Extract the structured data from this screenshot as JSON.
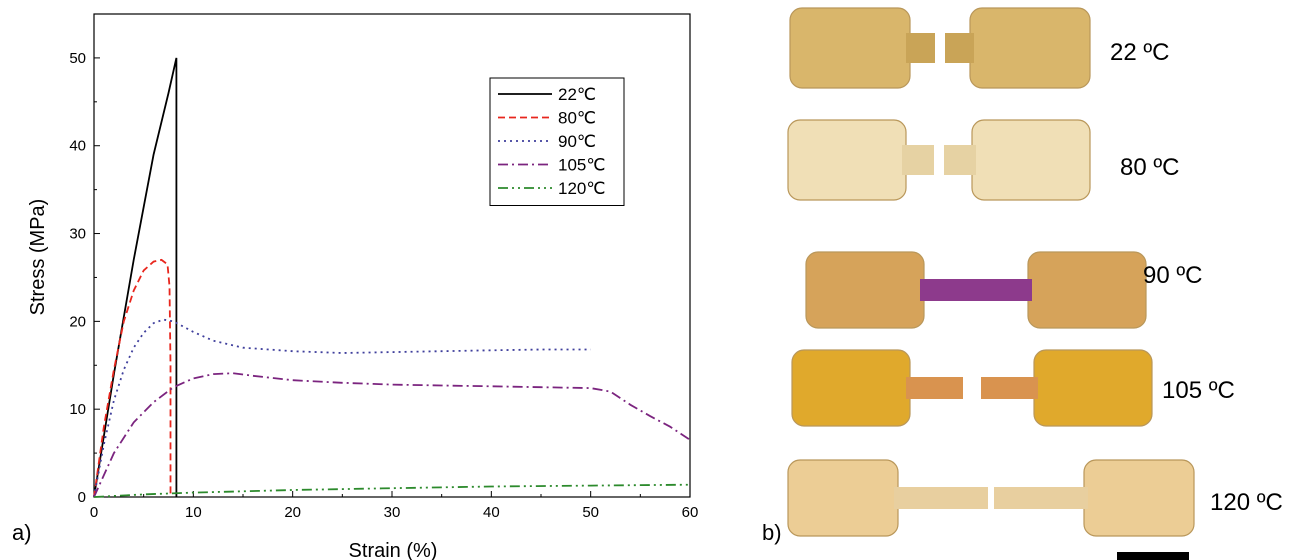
{
  "panels": {
    "a_label": "a)",
    "b_label": "b)"
  },
  "chart_data": {
    "type": "line",
    "xlabel": "Strain (%)",
    "ylabel": "Stress (MPa)",
    "xlim": [
      0,
      60
    ],
    "ylim": [
      0,
      55
    ],
    "xticks": [
      0,
      10,
      20,
      30,
      40,
      50,
      60
    ],
    "yticks": [
      0,
      10,
      20,
      30,
      40,
      50
    ],
    "grid": false,
    "legend_position": "top-right",
    "series": [
      {
        "name": "22℃",
        "color": "#000000",
        "dash": "solid",
        "x": [
          0,
          2,
          4,
          6,
          7.5,
          8.3,
          8.3
        ],
        "y": [
          0,
          14,
          27,
          39,
          46,
          50,
          0
        ]
      },
      {
        "name": "80℃",
        "color": "#e8261d",
        "dash": "dash",
        "x": [
          0,
          1,
          2,
          3,
          4,
          5,
          6,
          6.8,
          7.4,
          7.6,
          7.7,
          7.7
        ],
        "y": [
          0,
          8,
          14.5,
          20,
          23.5,
          25.8,
          26.8,
          27,
          26.5,
          24,
          15,
          0
        ]
      },
      {
        "name": "90℃",
        "color": "#3f3f9c",
        "dash": "dot",
        "x": [
          0,
          1,
          2,
          3,
          4,
          5,
          6,
          7,
          8,
          10,
          12,
          15,
          20,
          25,
          30,
          35,
          40,
          45,
          50
        ],
        "y": [
          0,
          6,
          11,
          14.5,
          17,
          18.7,
          19.8,
          20.2,
          20,
          18.8,
          17.8,
          17,
          16.6,
          16.4,
          16.5,
          16.6,
          16.7,
          16.8,
          16.8
        ]
      },
      {
        "name": "105℃",
        "color": "#7b247f",
        "dash": "dashdot",
        "x": [
          0,
          2,
          4,
          6,
          8,
          10,
          12,
          14,
          16,
          20,
          25,
          30,
          35,
          40,
          45,
          50,
          52,
          54,
          56,
          58,
          60
        ],
        "y": [
          0,
          5,
          8.5,
          10.8,
          12.5,
          13.5,
          14,
          14.1,
          13.8,
          13.3,
          13,
          12.8,
          12.7,
          12.6,
          12.5,
          12.4,
          12,
          10.5,
          9.2,
          8,
          6.5
        ]
      },
      {
        "name": "120℃",
        "color": "#2c8a2c",
        "dash": "dashdotdot",
        "x": [
          0,
          5,
          10,
          20,
          30,
          40,
          50,
          60
        ],
        "y": [
          0,
          0.3,
          0.5,
          0.8,
          1.0,
          1.2,
          1.3,
          1.4
        ]
      }
    ]
  },
  "photo": {
    "specimens": [
      {
        "label": "22 ºC",
        "tint": "#d9b66b",
        "neck": "#c9a457",
        "stretch": "short"
      },
      {
        "label": "80 ºC",
        "tint": "#f0dfb6",
        "neck": "#e6d2a3",
        "stretch": "short"
      },
      {
        "label": "90 ºC",
        "tint": "#d6a35a",
        "neck": "#8d3a8c",
        "stretch": "medium"
      },
      {
        "label": "105 ºC",
        "tint": "#e0a92c",
        "neck": "#d9934f",
        "stretch": "broken"
      },
      {
        "label": "120 ºC",
        "tint": "#eccd95",
        "neck": "#e8cf9f",
        "stretch": "long"
      }
    ]
  }
}
